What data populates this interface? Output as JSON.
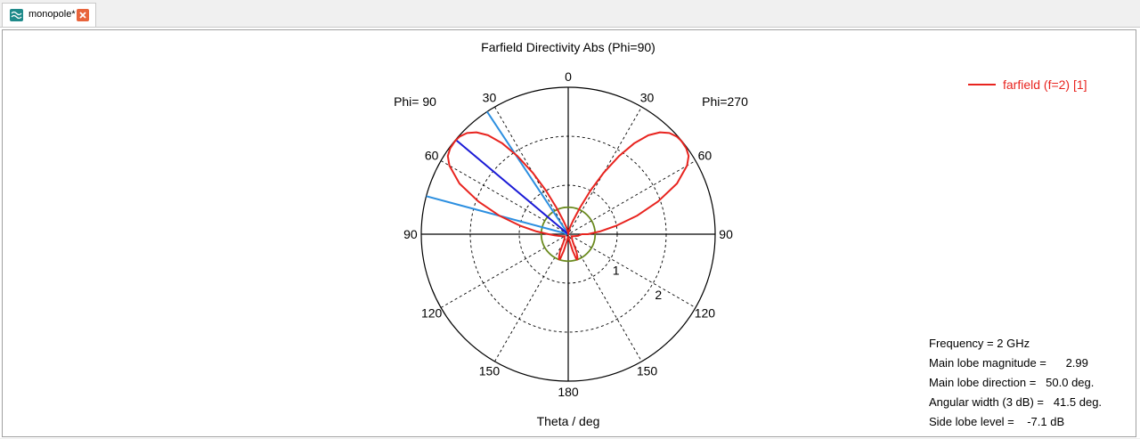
{
  "tab": {
    "label": "monopole*",
    "icon": "farfield-icon",
    "close_icon": "close-icon"
  },
  "chart_data": {
    "type": "polar",
    "title": "Farfield Directivity Abs (Phi=90)",
    "xlabel": "Theta / deg",
    "left_half_label": "Phi= 90",
    "right_half_label": "Phi=270",
    "angle_labels": [
      {
        "angle": 0,
        "text": "0"
      },
      {
        "angle": 30,
        "text": "30"
      },
      {
        "angle": 60,
        "text": "60"
      },
      {
        "angle": 90,
        "text": "90"
      },
      {
        "angle": 120,
        "text": "120"
      },
      {
        "angle": 150,
        "text": "150"
      },
      {
        "angle": 180,
        "text": "180"
      },
      {
        "angle": -30,
        "text": "30"
      },
      {
        "angle": -60,
        "text": "60"
      },
      {
        "angle": -90,
        "text": "90"
      },
      {
        "angle": -120,
        "text": "120"
      },
      {
        "angle": -150,
        "text": "150"
      }
    ],
    "radial_labels": [
      "1",
      "2"
    ],
    "r_max": 3,
    "r_ticks": [
      1,
      2,
      3
    ],
    "grid": true,
    "legend": {
      "position": "top-right",
      "entries": [
        {
          "name": "farfield (f=2) [1]",
          "color": "#e8241f"
        }
      ]
    },
    "series": [
      {
        "name": "farfield (f=2) [1]",
        "color": "#e8241f",
        "theta_deg": [
          -90,
          -85,
          -80,
          -75,
          -70,
          -65,
          -60,
          -57,
          -54,
          -51,
          -50,
          -48,
          -45,
          -42,
          -39,
          -36,
          -33,
          -30,
          -27,
          -24,
          -20,
          -15,
          -10,
          -5,
          0,
          5,
          10,
          15,
          20,
          24,
          27,
          30,
          33,
          36,
          39,
          42,
          45,
          48,
          50,
          51,
          54,
          57,
          60,
          65,
          70,
          75,
          80,
          85,
          90,
          95,
          100,
          110,
          120,
          130,
          140,
          150,
          155,
          158,
          160,
          162,
          165,
          170,
          175,
          180,
          185,
          190,
          195,
          198,
          200,
          202,
          205,
          210,
          220,
          230,
          240,
          250,
          260,
          270
        ],
        "r": [
          0.4,
          0.65,
          1.0,
          1.45,
          1.95,
          2.45,
          2.8,
          2.93,
          2.98,
          2.99,
          2.99,
          2.98,
          2.92,
          2.8,
          2.6,
          2.3,
          1.9,
          1.45,
          1.0,
          0.6,
          0.3,
          0.15,
          0.05,
          0.02,
          0.0,
          0.02,
          0.05,
          0.15,
          0.3,
          0.6,
          1.0,
          1.45,
          1.9,
          2.3,
          2.6,
          2.8,
          2.92,
          2.98,
          2.99,
          2.99,
          2.98,
          2.93,
          2.8,
          2.45,
          1.95,
          1.45,
          1.0,
          0.65,
          0.4,
          0.28,
          0.2,
          0.12,
          0.08,
          0.1,
          0.12,
          0.2,
          0.4,
          0.5,
          0.55,
          0.52,
          0.35,
          0.12,
          0.05,
          0.05,
          0.05,
          0.12,
          0.35,
          0.52,
          0.55,
          0.5,
          0.4,
          0.2,
          0.12,
          0.1,
          0.08,
          0.12,
          0.2,
          0.28
        ]
      }
    ],
    "markers": {
      "main_lobe_direction": {
        "theta_deg": 50,
        "r": 2.99,
        "color": "#1a1ad6"
      },
      "beam_width_lines": [
        {
          "theta_deg": 33.5,
          "color": "#2c8fe0"
        },
        {
          "theta_deg": 75,
          "color": "#2c8fe0"
        }
      ],
      "side_lobe_circle": {
        "r": 0.55,
        "color": "#6a8a1e"
      }
    }
  },
  "info": {
    "frequency": "Frequency = 2 GHz",
    "main_lobe_magnitude": "Main lobe magnitude =      2.99",
    "main_lobe_direction": "Main lobe direction =   50.0 deg.",
    "angular_width": "Angular width (3 dB) =   41.5 deg.",
    "side_lobe_level": "Side lobe level =    -7.1 dB"
  }
}
